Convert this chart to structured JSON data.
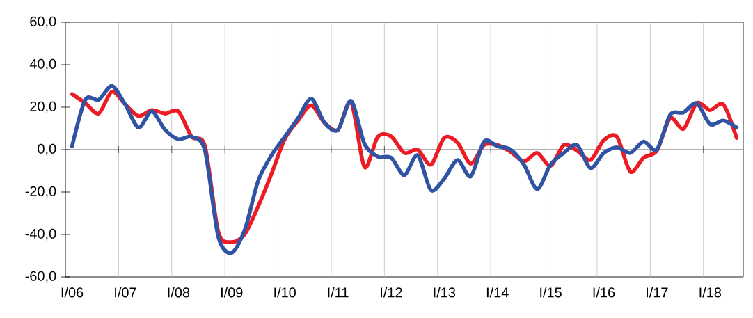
{
  "chart_data": {
    "type": "line",
    "categories": [
      "I/06",
      null,
      null,
      null,
      "I/07",
      null,
      null,
      null,
      "I/08",
      null,
      null,
      null,
      "I/09",
      null,
      null,
      null,
      "I/10",
      null,
      null,
      null,
      "I/11",
      null,
      null,
      null,
      "I/12",
      null,
      null,
      null,
      "I/13",
      null,
      null,
      null,
      "I/14",
      null,
      null,
      null,
      "I/15",
      null,
      null,
      null,
      "I/16",
      null,
      null,
      null,
      "I/17",
      null,
      null,
      null,
      "I/18",
      null,
      null
    ],
    "series": [
      {
        "color": "#ed1c24",
        "values": [
          26.2,
          21.9,
          17,
          27.3,
          21.3,
          15.8,
          18.6,
          17,
          18,
          6,
          1.6,
          -38.7,
          -43.6,
          -39.8,
          -26.8,
          -11.5,
          4.9,
          13.7,
          20.8,
          12.6,
          9.3,
          22.4,
          -8.2,
          6,
          6.3,
          -1.6,
          0,
          -7.1,
          5.5,
          3.3,
          -6.6,
          2.2,
          2.2,
          -1.1,
          -5.5,
          -1.6,
          -7.7,
          2.2,
          -0.5,
          -4.9,
          4.4,
          6,
          -10.4,
          -3.8,
          -0.5,
          14.8,
          9.8,
          21.9,
          18.6,
          21.3,
          5.5
        ]
      },
      {
        "color": "#3153a4",
        "values": [
          1.6,
          23.5,
          23.5,
          30,
          21.3,
          10.4,
          18,
          9.3,
          4.9,
          6,
          -0.5,
          -41,
          -48.6,
          -37.7,
          -14.8,
          -2.7,
          6,
          14.8,
          24,
          12.6,
          9.3,
          23,
          2.7,
          -3.3,
          -3.8,
          -12,
          -2.7,
          -19.1,
          -13.7,
          -4.9,
          -12.6,
          3.8,
          1.6,
          0,
          -7.1,
          -18.6,
          -7.1,
          -1.6,
          2.2,
          -8.7,
          -1.6,
          1.1,
          -1.6,
          3.8,
          0,
          16.4,
          17.5,
          21.9,
          12,
          13.7,
          10.4
        ]
      }
    ],
    "ylim": [
      -60,
      60
    ],
    "yticks": [
      {
        "value": -60,
        "label": "-60,0"
      },
      {
        "value": -40,
        "label": "-40,0"
      },
      {
        "value": -20,
        "label": "-20,0"
      },
      {
        "value": 0,
        "label": "0,0"
      },
      {
        "value": 20,
        "label": "20,0"
      },
      {
        "value": 40,
        "label": "40,0"
      },
      {
        "value": 60,
        "label": "60,0"
      }
    ],
    "grid": "x",
    "ref_lines": [
      {
        "axis": "y",
        "value": 0
      }
    ],
    "line_style": "solid"
  }
}
